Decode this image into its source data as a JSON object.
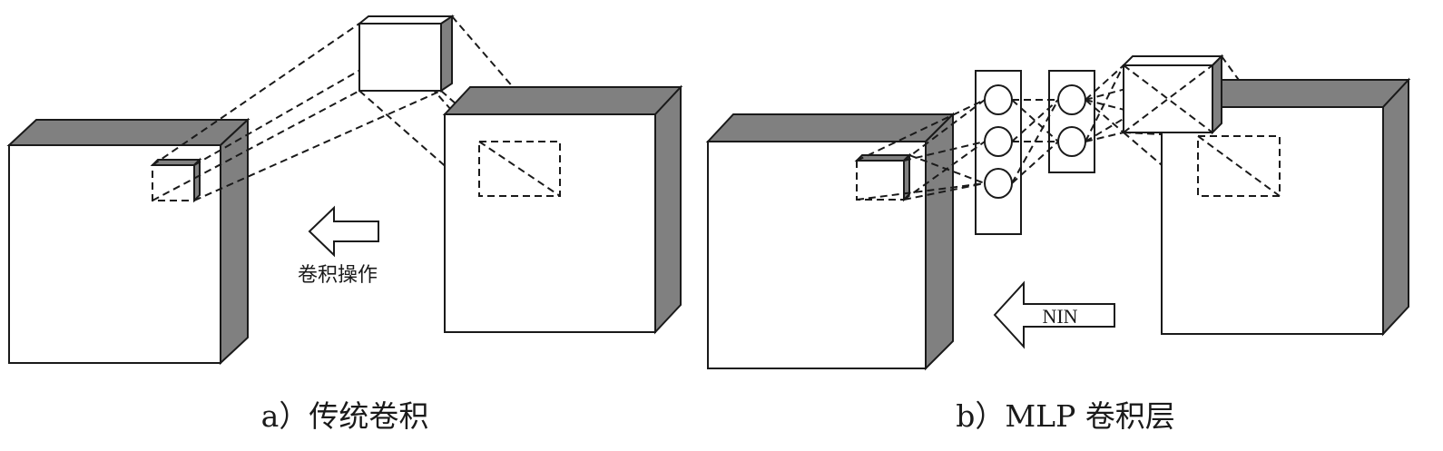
{
  "panel_a": {
    "caption": "a）传统卷积",
    "arrow_label": "卷积操作"
  },
  "panel_b": {
    "caption": "b）MLP 卷积层",
    "arrow_label": "NIN"
  }
}
